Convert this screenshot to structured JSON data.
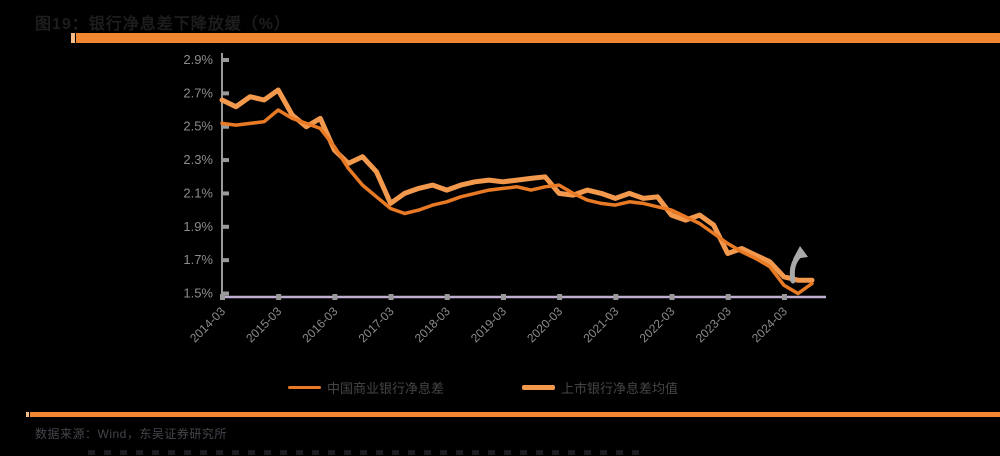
{
  "title": "图19：银行净息差下降放缓（%）",
  "accent": {
    "bar_color": "#F0862F",
    "bar_tip_color": "#F8BC86"
  },
  "source_line": "数据来源：Wind，东吴证券研究所",
  "legend": [
    {
      "label": "中国商业银行净息差",
      "color": "#E87A25",
      "thickness": 3.5
    },
    {
      "label": "上市银行净息差均值",
      "color": "#F2994E",
      "thickness": 5
    }
  ],
  "chart_data": {
    "type": "line",
    "title": "银行净息差下降放缓（%）",
    "xlabel": "",
    "ylabel": "",
    "ylim": [
      1.5,
      2.9
    ],
    "y_ticks": [
      "2.9%",
      "2.7%",
      "2.5%",
      "2.3%",
      "2.1%",
      "1.9%",
      "1.7%",
      "1.5%"
    ],
    "x_frequency": "quarterly",
    "x_labels": [
      "2014-03",
      "2015-03",
      "2016-03",
      "2017-03",
      "2018-03",
      "2019-03",
      "2020-03",
      "2021-03",
      "2022-03",
      "2023-03",
      "2024-03"
    ],
    "grid": false,
    "legend_position": "bottom",
    "annotation": "gray-up-arrow-at-series-end",
    "series": [
      {
        "name": "中国商业银行净息差",
        "color": "#E87A25",
        "width": 3.5,
        "values": [
          2.52,
          2.51,
          2.52,
          2.53,
          2.6,
          2.55,
          2.52,
          2.49,
          2.38,
          2.25,
          2.15,
          2.08,
          2.01,
          1.98,
          2.0,
          2.03,
          2.05,
          2.08,
          2.1,
          2.12,
          2.13,
          2.14,
          2.12,
          2.14,
          2.15,
          2.1,
          2.06,
          2.04,
          2.03,
          2.05,
          2.04,
          2.02,
          2.0,
          1.96,
          1.92,
          1.86,
          1.8,
          1.75,
          1.71,
          1.66,
          1.55,
          1.5,
          1.56
        ]
      },
      {
        "name": "上市银行净息差均值",
        "color": "#F2994E",
        "width": 5,
        "values": [
          2.66,
          2.62,
          2.68,
          2.66,
          2.72,
          2.57,
          2.5,
          2.55,
          2.36,
          2.28,
          2.32,
          2.23,
          2.04,
          2.1,
          2.13,
          2.15,
          2.12,
          2.15,
          2.17,
          2.18,
          2.17,
          2.18,
          2.19,
          2.2,
          2.1,
          2.09,
          2.12,
          2.1,
          2.07,
          2.1,
          2.07,
          2.08,
          1.97,
          1.94,
          1.97,
          1.91,
          1.74,
          1.77,
          1.73,
          1.69,
          1.6,
          1.58,
          1.58
        ]
      }
    ],
    "axis_colors": {
      "y_axis": "#9a9a9a",
      "x_baseline": "#bfaed2",
      "tick_labels": "#8c8c8c"
    }
  }
}
